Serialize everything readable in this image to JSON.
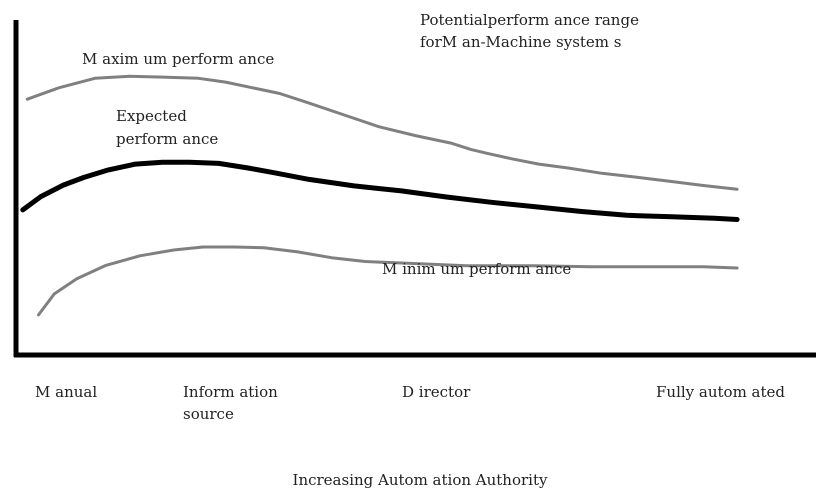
{
  "chart_data": {
    "type": "line",
    "title": "Potentialperform ance range\nforM an-Machine system s",
    "xlabel": "Increasing Autom ation Authority",
    "ylabel": "",
    "categories": [
      "M anual",
      "Inform ation\nsource",
      "D irector",
      "Fully autom ated"
    ],
    "series": [
      {
        "name": "M axim um perform ance",
        "color": "#808080",
        "x": [
          0,
          0.14,
          0.3,
          0.45,
          0.6,
          0.76,
          0.88,
          1.0,
          1.12,
          1.25,
          1.4,
          1.56,
          1.72,
          1.88,
          1.97,
          2.05,
          2.15,
          2.27,
          2.4,
          2.55,
          2.7,
          2.85,
          3.0,
          3.15
        ],
        "values": [
          6.7,
          7.0,
          7.25,
          7.3,
          7.28,
          7.25,
          7.15,
          7.0,
          6.85,
          6.6,
          6.3,
          5.98,
          5.75,
          5.55,
          5.38,
          5.27,
          5.14,
          5.0,
          4.9,
          4.76,
          4.66,
          4.55,
          4.44,
          4.34
        ]
      },
      {
        "name": "Expected perform ance",
        "color": "#000000",
        "x": [
          -0.02,
          0.06,
          0.16,
          0.25,
          0.36,
          0.48,
          0.6,
          0.72,
          0.85,
          0.98,
          1.1,
          1.25,
          1.45,
          1.66,
          1.86,
          2.06,
          2.26,
          2.46,
          2.66,
          2.86,
          3.05,
          3.15
        ],
        "values": [
          3.8,
          4.15,
          4.45,
          4.65,
          4.85,
          5.0,
          5.05,
          5.05,
          5.02,
          4.9,
          4.77,
          4.6,
          4.43,
          4.3,
          4.14,
          4.0,
          3.88,
          3.76,
          3.66,
          3.62,
          3.58,
          3.55
        ]
      },
      {
        "name": "M inim um perform ance",
        "color": "#808080",
        "x": [
          0.05,
          0.12,
          0.22,
          0.35,
          0.5,
          0.65,
          0.78,
          0.92,
          1.05,
          1.2,
          1.35,
          1.5,
          1.7,
          1.95,
          2.25,
          2.5,
          2.8,
          3.0,
          3.15
        ],
        "values": [
          1.05,
          1.6,
          2.0,
          2.35,
          2.6,
          2.75,
          2.83,
          2.83,
          2.81,
          2.7,
          2.55,
          2.45,
          2.4,
          2.34,
          2.34,
          2.31,
          2.31,
          2.31,
          2.28
        ]
      }
    ],
    "annotations": [
      {
        "text": "M axim um perform ance",
        "series": 0
      },
      {
        "text": "Expected\nperform ance",
        "series": 1
      },
      {
        "text": "M inim um perform ance",
        "series": 2
      }
    ],
    "xlim": [
      -0.05,
      3.5
    ],
    "ylim": [
      0,
      9.3
    ],
    "grid": false,
    "legend": "none"
  }
}
